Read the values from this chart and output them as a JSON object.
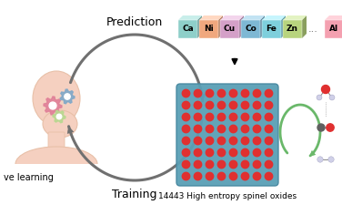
{
  "bg_color": "#ffffff",
  "prediction_label": "Prediction",
  "training_label": "Training",
  "active_learning_label": "ve learning",
  "caption": "14443 High entropy spinel oxides",
  "elements": [
    "Ca",
    "Ni",
    "Cu",
    "Co",
    "Fe",
    "Zn",
    "...",
    "Al"
  ],
  "element_colors": [
    "#8ecfc9",
    "#f0a87e",
    "#d4a0c8",
    "#7eb8d4",
    "#7ecfdc",
    "#b8d47e",
    "#e0e0e0",
    "#f4a0b0"
  ],
  "head_color": "#f5d0c0",
  "head_outline": "#e8c0a8",
  "gear1_color": "#e08098",
  "gear2_color": "#80a8c8",
  "gear3_color": "#b8d890",
  "arrow_color": "#707070",
  "crystal_color": "#5a9fb5",
  "crystal_edge": "#4888a0"
}
